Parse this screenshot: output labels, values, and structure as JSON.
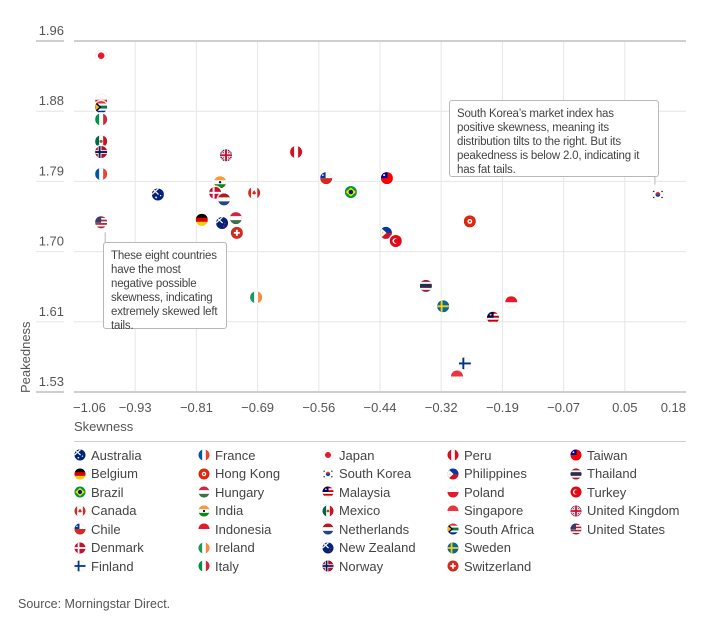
{
  "chart_data": {
    "type": "scatter",
    "title": "",
    "xlabel": "Skewness",
    "ylabel": "Peakedness",
    "xlim": [
      -1.06,
      0.18
    ],
    "ylim": [
      1.53,
      1.96
    ],
    "x_ticks": [
      "−1.06",
      "−0.93",
      "−0.81",
      "−0.69",
      "−0.56",
      "−0.44",
      "−0.32",
      "−0.19",
      "−0.07",
      "0.05",
      "0.18"
    ],
    "y_ticks": [
      "1.96",
      "1.88",
      "1.79",
      "1.70",
      "1.61",
      "1.53"
    ],
    "grid": true,
    "legend_position": "bottom",
    "points": [
      {
        "name": "Japan",
        "flag": "japan",
        "x": -1.005,
        "y": 1.942
      },
      {
        "name": "Poland",
        "flag": "poland",
        "x": -1.005,
        "y": 1.888
      },
      {
        "name": "South Africa",
        "flag": "south-africa",
        "x": -1.005,
        "y": 1.879
      },
      {
        "name": "Italy",
        "flag": "italy",
        "x": -1.005,
        "y": 1.864
      },
      {
        "name": "Mexico",
        "flag": "mexico",
        "x": -1.005,
        "y": 1.837
      },
      {
        "name": "Norway",
        "flag": "norway",
        "x": -1.005,
        "y": 1.824
      },
      {
        "name": "France",
        "flag": "france",
        "x": -1.005,
        "y": 1.797
      },
      {
        "name": "United States",
        "flag": "united-states",
        "x": -1.005,
        "y": 1.738
      },
      {
        "name": "Australia",
        "flag": "australia",
        "x": -0.89,
        "y": 1.772
      },
      {
        "name": "United Kingdom",
        "flag": "united-kingdom",
        "x": -0.752,
        "y": 1.82
      },
      {
        "name": "Peru",
        "flag": "peru",
        "x": -0.61,
        "y": 1.824
      },
      {
        "name": "India",
        "flag": "india",
        "x": -0.764,
        "y": 1.787
      },
      {
        "name": "Denmark",
        "flag": "denmark",
        "x": -0.774,
        "y": 1.774
      },
      {
        "name": "Netherlands",
        "flag": "netherlands",
        "x": -0.756,
        "y": 1.766
      },
      {
        "name": "Canada",
        "flag": "canada",
        "x": -0.695,
        "y": 1.774
      },
      {
        "name": "Belgium",
        "flag": "belgium",
        "x": -0.801,
        "y": 1.741
      },
      {
        "name": "New Zealand",
        "flag": "new-zealand",
        "x": -0.76,
        "y": 1.737
      },
      {
        "name": "Hungary",
        "flag": "hungary",
        "x": -0.732,
        "y": 1.743
      },
      {
        "name": "Switzerland",
        "flag": "switzerland",
        "x": -0.73,
        "y": 1.725
      },
      {
        "name": "Ireland",
        "flag": "ireland",
        "x": -0.691,
        "y": 1.646
      },
      {
        "name": "Chile",
        "flag": "chile",
        "x": -0.549,
        "y": 1.792
      },
      {
        "name": "Taiwan",
        "flag": "taiwan",
        "x": -0.426,
        "y": 1.792
      },
      {
        "name": "Brazil",
        "flag": "brazil",
        "x": -0.499,
        "y": 1.775
      },
      {
        "name": "Hong Kong",
        "flag": "hong-kong",
        "x": -0.258,
        "y": 1.739
      },
      {
        "name": "Philippines",
        "flag": "philippines",
        "x": -0.428,
        "y": 1.725
      },
      {
        "name": "Turkey",
        "flag": "turkey",
        "x": -0.408,
        "y": 1.715
      },
      {
        "name": "Thailand",
        "flag": "thailand",
        "x": -0.347,
        "y": 1.66
      },
      {
        "name": "Sweden",
        "flag": "sweden",
        "x": -0.312,
        "y": 1.635
      },
      {
        "name": "Indonesia",
        "flag": "indonesia",
        "x": -0.174,
        "y": 1.64
      },
      {
        "name": "Malaysia",
        "flag": "malaysia",
        "x": -0.211,
        "y": 1.621
      },
      {
        "name": "Finland",
        "flag": "finland",
        "x": -0.268,
        "y": 1.565
      },
      {
        "name": "Singapore",
        "flag": "singapore",
        "x": -0.284,
        "y": 1.549
      },
      {
        "name": "South Korea",
        "flag": "south-korea",
        "x": 0.123,
        "y": 1.772
      }
    ],
    "annotations": [
      {
        "id": "left",
        "text": "These eight countries have the most negative possible skewness, indicating extremely skewed left tails.",
        "target": "United States"
      },
      {
        "id": "right",
        "text": "South Korea’s market index has positive skewness, meaning its distribution tilts to the right. But its peakedness is below 2.0, indicating it has fat tails.",
        "target": "South Korea"
      }
    ],
    "legend": [
      [
        "Australia",
        "Belgium",
        "Brazil",
        "Canada",
        "Chile",
        "Denmark",
        "Finland"
      ],
      [
        "France",
        "Hong Kong",
        "Hungary",
        "India",
        "Indonesia",
        "Ireland",
        "Italy"
      ],
      [
        "Japan",
        "South Korea",
        "Malaysia",
        "Mexico",
        "Netherlands",
        "New Zealand",
        "Norway"
      ],
      [
        "Peru",
        "Philippines",
        "Poland",
        "Singapore",
        "South Africa",
        "Sweden",
        "Switzerland"
      ],
      [
        "Taiwan",
        "Thailand",
        "Turkey",
        "United Kingdom",
        "United States"
      ]
    ]
  },
  "annotations": {
    "left_text": "These eight countries have the most negative possible skewness, indicating extremely skewed left tails.",
    "right_text": "South Korea’s market index has positive skewness, meaning its distribution tilts to the right. But its peakedness is below 2.0, indicating it has fat tails."
  },
  "source": "Source: Morningstar Direct.",
  "colors": {
    "grid": "#e3e3e3",
    "axis_line": "#cfcfcf",
    "text": "#555555"
  }
}
